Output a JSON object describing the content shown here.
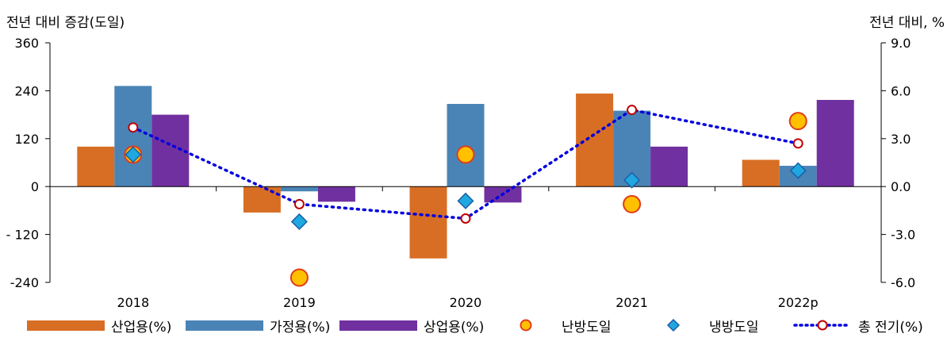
{
  "chart_data": {
    "type": "bar",
    "categories": [
      "2018",
      "2019",
      "2020",
      "2021",
      "2022p"
    ],
    "ylabel_left": "전년 대비 증감(도일)",
    "ylabel_right": "전년 대비, %",
    "ylim_left": [
      -240,
      360
    ],
    "yticks_left": [
      "360",
      "240",
      "120",
      "0",
      "- 120",
      "-240"
    ],
    "ylim_right": [
      -6.0,
      9.0
    ],
    "yticks_right": [
      "9.0",
      "6.0",
      "3.0",
      "0.0",
      "-3.0",
      "-6.0"
    ],
    "grid": false,
    "legend_position": "bottom",
    "bar_series": [
      {
        "name": "산업용(%)",
        "color": "#d86e24",
        "axis": "left",
        "values": [
          100,
          -65,
          -180,
          233,
          67
        ]
      },
      {
        "name": "가정용(%)",
        "color": "#4a84b6",
        "axis": "left",
        "values": [
          252,
          -12,
          207,
          190,
          52
        ]
      },
      {
        "name": "상업용(%)",
        "color": "#7030a0",
        "axis": "left",
        "values": [
          180,
          -38,
          -40,
          100,
          217
        ]
      }
    ],
    "marker_series": [
      {
        "name": "난방도일",
        "marker": "circle",
        "fill": "#ffc000",
        "stroke": "#e03c1c",
        "axis": "right",
        "values": [
          2.0,
          -5.7,
          2.0,
          -1.1,
          4.1
        ]
      },
      {
        "name": "냉방도일",
        "marker": "diamond",
        "fill": "#1fa7e0",
        "stroke": "#1a5fa8",
        "axis": "right",
        "values": [
          2.0,
          -2.2,
          -0.9,
          0.4,
          1.0
        ]
      }
    ],
    "line_series": [
      {
        "name": "총 전기(%)",
        "style": "dotted",
        "color": "#0000e0",
        "marker_stroke": "#c00000",
        "axis": "right",
        "values": [
          3.7,
          -1.1,
          -2.0,
          4.8,
          2.7
        ]
      }
    ]
  }
}
